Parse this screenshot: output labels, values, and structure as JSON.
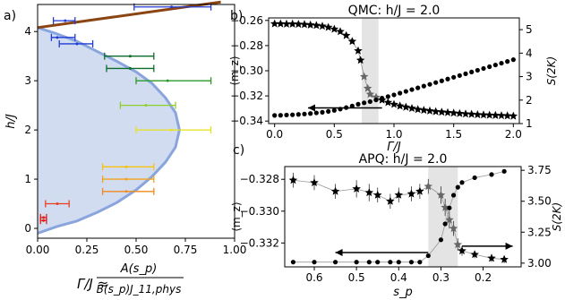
{
  "panel_labels": {
    "a": "a)",
    "b": "b)",
    "c": "c)"
  },
  "chart_data": [
    {
      "id": "a",
      "type": "scatter",
      "xlabel_lhs": "Γ/J ≈",
      "xlabel_num": "A(s_p)",
      "xlabel_den": "B(s_p)J_11,phys",
      "ylabel": "h/J",
      "xlim": [
        0,
        1.0
      ],
      "ylim": [
        -0.2,
        4.55
      ],
      "xticks": [
        "0.00",
        "0.25",
        "0.50",
        "0.75",
        "1.00"
      ],
      "yticks": [
        "0",
        "1",
        "2",
        "3",
        "4"
      ],
      "brown_line": [
        [
          0.0,
          4.08
        ],
        [
          0.93,
          4.6
        ]
      ],
      "boundary": [
        [
          0.0,
          4.08
        ],
        [
          0.1,
          3.95
        ],
        [
          0.2,
          3.8
        ],
        [
          0.3,
          3.6
        ],
        [
          0.4,
          3.4
        ],
        [
          0.5,
          3.18
        ],
        [
          0.58,
          2.95
        ],
        [
          0.65,
          2.65
        ],
        [
          0.7,
          2.35
        ],
        [
          0.72,
          2.0
        ],
        [
          0.7,
          1.65
        ],
        [
          0.65,
          1.35
        ],
        [
          0.58,
          1.05
        ],
        [
          0.5,
          0.78
        ],
        [
          0.4,
          0.52
        ],
        [
          0.3,
          0.32
        ],
        [
          0.2,
          0.15
        ],
        [
          0.1,
          0.04
        ],
        [
          0.0,
          -0.1
        ]
      ],
      "errorbars": [
        {
          "y": 4.5,
          "x": 0.68,
          "xmin": 0.49,
          "xmax": 0.88,
          "color": "#1f3bd6"
        },
        {
          "y": 4.22,
          "x": 0.14,
          "xmin": 0.08,
          "xmax": 0.19,
          "color": "#1f3bd6"
        },
        {
          "y": 3.88,
          "x": 0.1,
          "xmin": 0.07,
          "xmax": 0.19,
          "color": "#1f3bd6"
        },
        {
          "y": 3.75,
          "x": 0.2,
          "xmin": 0.11,
          "xmax": 0.28,
          "color": "#1f3bd6"
        },
        {
          "y": 3.5,
          "x": 0.47,
          "xmin": 0.34,
          "xmax": 0.59,
          "color": "#0b6b2a"
        },
        {
          "y": 3.25,
          "x": 0.47,
          "xmin": 0.35,
          "xmax": 0.59,
          "color": "#0b6b2a"
        },
        {
          "y": 3.0,
          "x": 0.66,
          "xmin": 0.5,
          "xmax": 0.88,
          "color": "#2a9a2a"
        },
        {
          "y": 2.5,
          "x": 0.55,
          "xmin": 0.42,
          "xmax": 0.7,
          "color": "#8fcf2a"
        },
        {
          "y": 2.0,
          "x": 0.68,
          "xmin": 0.5,
          "xmax": 0.88,
          "color": "#e7e21a"
        },
        {
          "y": 1.25,
          "x": 0.45,
          "xmin": 0.33,
          "xmax": 0.59,
          "color": "#f5c211"
        },
        {
          "y": 1.0,
          "x": 0.45,
          "xmin": 0.33,
          "xmax": 0.59,
          "color": "#f2a31c"
        },
        {
          "y": 0.75,
          "x": 0.45,
          "xmin": 0.33,
          "xmax": 0.59,
          "color": "#f08a1e"
        },
        {
          "y": 0.5,
          "x": 0.1,
          "xmin": 0.04,
          "xmax": 0.16,
          "color": "#e8401c"
        },
        {
          "y": 0.22,
          "x": 0.03,
          "xmin": 0.015,
          "xmax": 0.045,
          "color": "#e0221c"
        },
        {
          "y": 0.16,
          "x": 0.03,
          "xmin": 0.015,
          "xmax": 0.045,
          "color": "#e0221c"
        }
      ]
    },
    {
      "id": "b",
      "type": "scatter",
      "title": "QMC: h/J = 2.0",
      "xlabel": "Γ/J",
      "ylabel_left": "⟨m_z⟩",
      "ylabel_right": "S(2K)",
      "xlim": [
        -0.05,
        2.05
      ],
      "ylim_left": [
        -0.342,
        -0.258
      ],
      "ylim_right": [
        1.0,
        5.5
      ],
      "xticks": [
        "0.0",
        "0.5",
        "1.0",
        "1.5",
        "2.0"
      ],
      "yticks_left": [
        "−0.26",
        "−0.28",
        "−0.30",
        "−0.32",
        "−0.34"
      ],
      "yticks_right": [
        "1",
        "2",
        "3",
        "4",
        "5"
      ],
      "shade": [
        0.73,
        0.87
      ],
      "stars_S2K": {
        "x": [
          0.0,
          0.05,
          0.1,
          0.15,
          0.2,
          0.25,
          0.3,
          0.35,
          0.4,
          0.45,
          0.5,
          0.55,
          0.6,
          0.65,
          0.7,
          0.72,
          0.75,
          0.78,
          0.8,
          0.85,
          0.9,
          0.95,
          1.0,
          1.05,
          1.1,
          1.15,
          1.2,
          1.25,
          1.3,
          1.35,
          1.4,
          1.45,
          1.5,
          1.55,
          1.6,
          1.65,
          1.7,
          1.75,
          1.8,
          1.85,
          1.9,
          1.95,
          2.0
        ],
        "y": [
          5.25,
          5.25,
          5.24,
          5.24,
          5.23,
          5.22,
          5.2,
          5.18,
          5.15,
          5.1,
          5.02,
          4.92,
          4.75,
          4.5,
          4.1,
          3.7,
          3.0,
          2.5,
          2.25,
          2.12,
          2.0,
          1.9,
          1.82,
          1.75,
          1.7,
          1.65,
          1.6,
          1.57,
          1.54,
          1.51,
          1.49,
          1.47,
          1.45,
          1.43,
          1.41,
          1.4,
          1.38,
          1.37,
          1.36,
          1.35,
          1.34,
          1.33,
          1.32
        ]
      },
      "dots_mz": {
        "x": [
          0.0,
          0.05,
          0.1,
          0.15,
          0.2,
          0.25,
          0.3,
          0.35,
          0.4,
          0.45,
          0.5,
          0.55,
          0.6,
          0.65,
          0.7,
          0.75,
          0.8,
          0.85,
          0.9,
          0.95,
          1.0,
          1.05,
          1.1,
          1.15,
          1.2,
          1.25,
          1.3,
          1.35,
          1.4,
          1.45,
          1.5,
          1.55,
          1.6,
          1.65,
          1.7,
          1.75,
          1.8,
          1.85,
          1.9,
          1.95,
          2.0
        ],
        "y": [
          -0.3355,
          -0.3354,
          -0.3352,
          -0.335,
          -0.3347,
          -0.3344,
          -0.334,
          -0.3335,
          -0.333,
          -0.3323,
          -0.3315,
          -0.3305,
          -0.3293,
          -0.328,
          -0.3266,
          -0.3255,
          -0.3245,
          -0.3232,
          -0.3218,
          -0.3205,
          -0.3192,
          -0.3178,
          -0.3164,
          -0.315,
          -0.3136,
          -0.3122,
          -0.3108,
          -0.3094,
          -0.308,
          -0.3066,
          -0.3052,
          -0.3038,
          -0.3024,
          -0.301,
          -0.2996,
          -0.2982,
          -0.2968,
          -0.2954,
          -0.294,
          -0.2926,
          -0.2912
        ]
      },
      "arrow": {
        "x_from": 0.9,
        "x_to": 0.28,
        "y": -0.3295
      }
    },
    {
      "id": "c",
      "type": "scatter",
      "title": "APQ: h/J = 2.0",
      "xlabel": "s_p",
      "ylabel_left": "⟨m_z⟩",
      "ylabel_right": "S(2K)",
      "xlim": [
        0.67,
        0.11
      ],
      "ylim_left": [
        -0.3335,
        -0.3272
      ],
      "ylim_right": [
        2.97,
        3.78
      ],
      "xticks": [
        "0.6",
        "0.5",
        "0.4",
        "0.3",
        "0.2"
      ],
      "yticks_left": [
        "−0.328",
        "−0.330",
        "−0.332"
      ],
      "yticks_right": [
        "3.75",
        "3.50",
        "3.25",
        "3.00"
      ],
      "shade": [
        0.33,
        0.26
      ],
      "stars_S2K": {
        "x": [
          0.65,
          0.6,
          0.55,
          0.5,
          0.47,
          0.45,
          0.42,
          0.4,
          0.37,
          0.35,
          0.33,
          0.3,
          0.29,
          0.28,
          0.27,
          0.26,
          0.25,
          0.22,
          0.18,
          0.15
        ],
        "y": [
          3.67,
          3.65,
          3.58,
          3.6,
          3.57,
          3.55,
          3.5,
          3.55,
          3.56,
          3.58,
          3.62,
          3.55,
          3.45,
          3.35,
          3.28,
          3.15,
          3.1,
          3.07,
          3.04,
          3.03
        ],
        "err": [
          0.06,
          0.06,
          0.06,
          0.07,
          0.07,
          0.06,
          0.06,
          0.06,
          0.06,
          0.06,
          0.06,
          0.07,
          0.07,
          0.07,
          0.06,
          0.05,
          0.04,
          0.03,
          0.03,
          0.03
        ]
      },
      "dots_mz": {
        "x": [
          0.65,
          0.6,
          0.55,
          0.5,
          0.47,
          0.45,
          0.42,
          0.4,
          0.37,
          0.35,
          0.33,
          0.3,
          0.29,
          0.28,
          0.27,
          0.26,
          0.25,
          0.22,
          0.18,
          0.15
        ],
        "y": [
          -0.3332,
          -0.3332,
          -0.3332,
          -0.3332,
          -0.3332,
          -0.3332,
          -0.3332,
          -0.3332,
          -0.3332,
          -0.3332,
          -0.3328,
          -0.3318,
          -0.3308,
          -0.3298,
          -0.329,
          -0.3285,
          -0.3282,
          -0.3279,
          -0.3277,
          -0.3275
        ]
      },
      "arrow_left": {
        "x_from": 0.33,
        "x_to": 0.55,
        "y": -0.3326
      },
      "arrow_right": {
        "x_from": 0.25,
        "x_to": 0.13,
        "y": -0.3322
      }
    }
  ]
}
